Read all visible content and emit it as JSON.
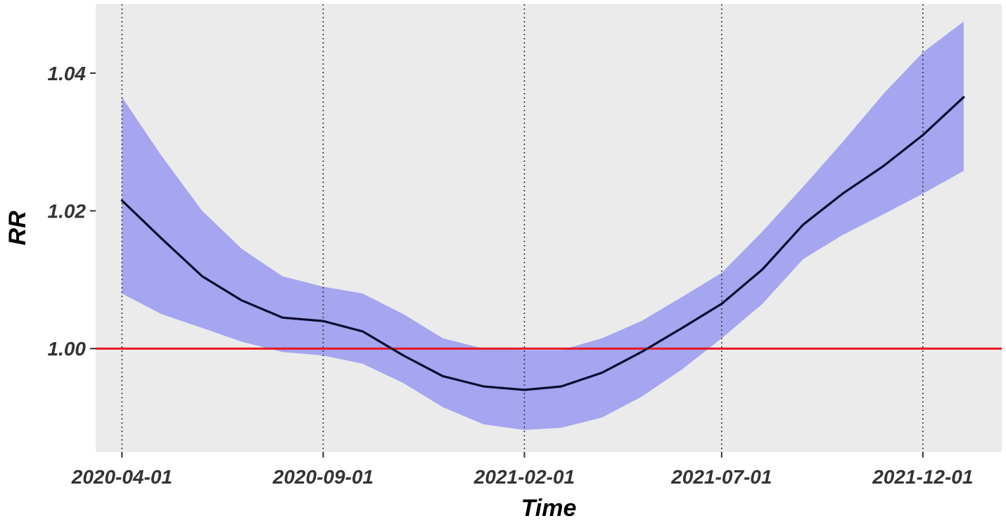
{
  "chart_data": {
    "type": "line",
    "title": "",
    "xlabel": "Time",
    "ylabel": "RR",
    "xlim": [
      "2020-03-12",
      "2022-01-30"
    ],
    "ylim": [
      0.985,
      1.05
    ],
    "x_ticks": [
      "2020-04-01",
      "2020-09-01",
      "2021-02-01",
      "2021-07-01",
      "2021-12-01"
    ],
    "y_ticks": [
      "1.00",
      "1.02",
      "1.04"
    ],
    "grid": "dotted vertical lines at x ticks",
    "reference_line": {
      "y": 1.0,
      "color": "#e8161e"
    },
    "colors": {
      "panel_background": "#ebebeb",
      "band_fill": "#a5a5f0",
      "line": "#0d0b2e",
      "vline": "#333333",
      "axis_text": "#333333"
    },
    "series": [
      {
        "x": [
          "2020-04-01",
          "2020-05-01",
          "2020-06-01",
          "2020-07-01",
          "2020-08-01",
          "2020-09-01",
          "2020-10-01",
          "2020-11-01",
          "2020-12-01",
          "2021-01-01",
          "2021-02-01",
          "2021-03-01",
          "2021-04-01",
          "2021-05-01",
          "2021-06-01",
          "2021-07-01",
          "2021-08-01",
          "2021-09-01",
          "2021-10-01",
          "2021-11-01",
          "2021-12-01",
          "2022-01-01"
        ],
        "y": [
          1.0215,
          1.016,
          1.0105,
          1.007,
          1.0045,
          1.004,
          1.0025,
          0.999,
          0.996,
          0.9945,
          0.994,
          0.9945,
          0.9965,
          0.9995,
          1.003,
          1.0065,
          1.0115,
          1.018,
          1.0225,
          1.0265,
          1.031,
          1.0365
        ],
        "lower": [
          1.008,
          1.005,
          1.003,
          1.001,
          0.9995,
          0.999,
          0.9978,
          0.995,
          0.9915,
          0.989,
          0.9882,
          0.9885,
          0.99,
          0.993,
          0.997,
          1.0015,
          1.0065,
          1.013,
          1.0165,
          1.0195,
          1.0225,
          1.0258
        ],
        "upper": [
          1.0365,
          1.028,
          1.02,
          1.0145,
          1.0105,
          1.009,
          1.008,
          1.005,
          1.0015,
          1.0,
          0.9998,
          0.9998,
          1.0015,
          1.004,
          1.0075,
          1.011,
          1.017,
          1.0235,
          1.03,
          1.037,
          1.043,
          1.0475
        ]
      }
    ]
  }
}
